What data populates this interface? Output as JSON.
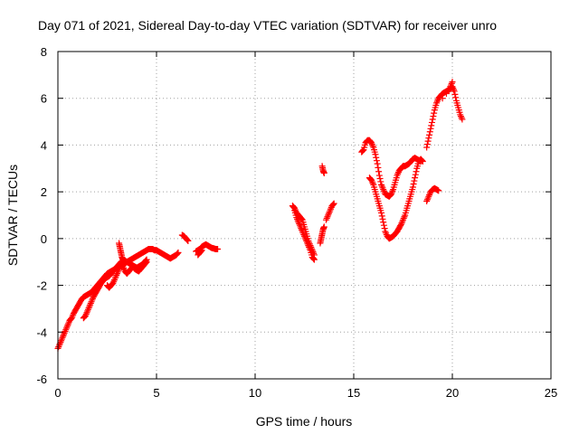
{
  "chart_data": {
    "type": "scatter",
    "title": "Day 071 of 2021, Sidereal Day-to-day VTEC variation (SDTVAR) for receiver unro",
    "xlabel": "GPS time / hours",
    "ylabel": "SDTVAR / TECUs",
    "xlim": [
      0,
      25
    ],
    "ylim": [
      -6,
      8
    ],
    "xticks": [
      "0",
      "5",
      "10",
      "15",
      "20",
      "25"
    ],
    "yticks": [
      "-6",
      "-4",
      "-2",
      "0",
      "2",
      "4",
      "6",
      "8"
    ],
    "grid": true,
    "legend": "none",
    "marker": "plus",
    "color": "#ff0000",
    "series": [
      {
        "x": [
          0.0,
          0.1,
          0.2,
          0.3,
          0.4,
          0.5,
          0.6,
          0.7,
          0.8,
          0.9,
          1.0,
          1.1,
          1.2,
          1.3,
          1.4,
          1.5,
          1.6,
          1.7,
          1.8,
          1.9,
          2.0,
          2.1,
          2.2,
          2.3,
          2.4,
          2.5,
          2.6,
          2.7,
          2.8,
          2.9,
          3.0,
          3.1,
          3.2,
          3.3,
          3.4,
          3.5,
          3.6,
          3.7,
          3.8,
          3.9,
          4.0,
          4.1,
          4.2,
          4.3,
          4.4,
          4.5,
          4.6,
          4.7,
          4.8,
          4.9,
          5.0,
          5.1,
          5.2,
          5.3,
          5.4,
          5.5,
          5.6,
          5.7,
          5.8,
          5.9,
          6.0,
          6.1
        ],
        "y": [
          -4.7,
          -4.5,
          -4.3,
          -4.1,
          -3.9,
          -3.7,
          -3.5,
          -3.4,
          -3.2,
          -3.05,
          -2.9,
          -2.75,
          -2.6,
          -2.5,
          -2.45,
          -2.4,
          -2.35,
          -2.3,
          -2.2,
          -2.1,
          -2.0,
          -1.9,
          -1.8,
          -1.7,
          -1.6,
          -1.5,
          -1.45,
          -1.4,
          -1.35,
          -1.3,
          -1.25,
          -1.2,
          -1.15,
          -1.1,
          -1.05,
          -1.0,
          -0.95,
          -0.9,
          -0.85,
          -0.8,
          -0.75,
          -0.7,
          -0.65,
          -0.6,
          -0.55,
          -0.5,
          -0.45,
          -0.45,
          -0.45,
          -0.5,
          -0.5,
          -0.55,
          -0.6,
          -0.65,
          -0.7,
          -0.75,
          -0.8,
          -0.85,
          -0.8,
          -0.75,
          -0.7,
          -0.6
        ]
      },
      {
        "x": [
          1.3,
          1.4,
          1.5,
          1.6,
          1.7,
          1.8,
          1.9,
          2.0,
          2.1,
          2.2,
          2.3,
          2.4,
          2.5,
          2.6,
          2.7,
          2.8,
          2.9,
          3.0,
          3.1,
          3.2,
          3.3,
          3.4,
          3.5,
          3.6,
          3.7,
          3.8,
          3.9,
          4.0,
          4.1,
          4.2,
          4.3,
          4.4,
          4.5
        ],
        "y": [
          -3.4,
          -3.3,
          -3.1,
          -2.9,
          -2.7,
          -2.5,
          -2.35,
          -2.2,
          -2.05,
          -1.9,
          -1.8,
          -1.7,
          -1.65,
          -1.6,
          -1.5,
          -1.4,
          -1.3,
          -1.2,
          -1.1,
          -1.0,
          -0.95,
          -0.95,
          -1.0,
          -1.05,
          -1.1,
          -1.15,
          -1.2,
          -1.25,
          -1.2,
          -1.15,
          -1.1,
          -1.0,
          -0.9
        ]
      },
      {
        "x": [
          2.5,
          2.6,
          2.7,
          2.8,
          2.9,
          3.0,
          3.1,
          3.2,
          3.3,
          3.4,
          3.5,
          3.6,
          3.7,
          3.8,
          3.9,
          4.0,
          4.1,
          4.2,
          4.3,
          4.4,
          4.5
        ],
        "y": [
          -2.0,
          -2.1,
          -2.0,
          -1.9,
          -1.7,
          -1.5,
          -1.3,
          -1.1,
          -1.2,
          -1.4,
          -1.5,
          -1.4,
          -1.3,
          -1.2,
          -1.3,
          -1.35,
          -1.4,
          -1.3,
          -1.2,
          -1.1,
          -1.0
        ]
      },
      {
        "x": [
          3.1,
          3.15,
          3.2,
          3.25,
          3.3
        ],
        "y": [
          -0.2,
          -0.4,
          -0.6,
          -0.8,
          -0.9
        ]
      },
      {
        "x": [
          6.3,
          6.4,
          6.5,
          6.6
        ],
        "y": [
          0.15,
          0.1,
          0.0,
          -0.1
        ]
      },
      {
        "x": [
          7.0,
          7.1,
          7.2,
          7.3,
          7.4,
          7.5,
          7.6,
          7.7,
          7.8,
          7.9,
          8.0,
          8.1,
          7.1,
          7.2,
          7.3
        ],
        "y": [
          -0.55,
          -0.5,
          -0.45,
          -0.35,
          -0.3,
          -0.25,
          -0.3,
          -0.35,
          -0.4,
          -0.42,
          -0.45,
          -0.45,
          -0.7,
          -0.6,
          -0.5
        ]
      },
      {
        "x": [
          11.9,
          12.0,
          12.1,
          12.2,
          12.3,
          12.4,
          12.5,
          12.6,
          12.7,
          12.8,
          12.9,
          13.0,
          12.0,
          12.1,
          12.2,
          12.3,
          12.4,
          12.5,
          12.6,
          12.7,
          12.8,
          12.9,
          13.0
        ],
        "y": [
          1.4,
          1.3,
          1.1,
          1.0,
          0.9,
          0.8,
          0.5,
          0.2,
          -0.1,
          -0.3,
          -0.5,
          -0.7,
          1.2,
          0.9,
          0.7,
          0.5,
          0.3,
          0.1,
          -0.1,
          -0.3,
          -0.5,
          -0.8,
          -0.9
        ]
      },
      {
        "x": [
          13.3,
          13.35,
          13.4,
          13.45,
          13.5,
          13.4,
          13.45,
          13.5,
          13.6,
          13.7,
          13.8,
          13.9,
          14.0
        ],
        "y": [
          -0.2,
          0.0,
          0.2,
          0.4,
          0.5,
          3.1,
          2.9,
          2.8,
          0.8,
          1.0,
          1.2,
          1.4,
          1.5
        ]
      },
      {
        "x": [
          15.4,
          15.5,
          15.6,
          15.7,
          15.8,
          15.9,
          16.0,
          16.1,
          16.2,
          16.3,
          16.4,
          16.5,
          16.6,
          16.7,
          16.8,
          16.9,
          17.0,
          17.1,
          17.2,
          17.3,
          17.4,
          17.5,
          17.6,
          17.7,
          17.8,
          17.9,
          18.0,
          18.1,
          18.2,
          18.3,
          18.4
        ],
        "y": [
          3.7,
          3.8,
          4.1,
          4.2,
          4.2,
          4.1,
          3.9,
          3.6,
          3.2,
          2.7,
          2.3,
          2.1,
          1.9,
          1.85,
          1.8,
          1.9,
          2.1,
          2.4,
          2.7,
          2.9,
          3.0,
          3.1,
          3.1,
          3.15,
          3.2,
          3.3,
          3.4,
          3.45,
          3.4,
          3.35,
          3.3
        ]
      },
      {
        "x": [
          15.8,
          15.9,
          16.0,
          16.1,
          16.2,
          16.3,
          16.4,
          16.5,
          16.6,
          16.7,
          16.8,
          16.9,
          17.0,
          17.1,
          17.2,
          17.3,
          17.4,
          17.5,
          17.6,
          17.7,
          17.8,
          17.9,
          18.0,
          18.1,
          18.2,
          18.3,
          18.4,
          18.5
        ],
        "y": [
          2.6,
          2.5,
          2.3,
          2.0,
          1.7,
          1.4,
          1.1,
          0.7,
          0.3,
          0.1,
          0.0,
          0.05,
          0.1,
          0.2,
          0.3,
          0.45,
          0.6,
          0.8,
          1.0,
          1.3,
          1.6,
          1.9,
          2.2,
          2.6,
          3.0,
          3.3,
          3.4,
          3.3
        ]
      },
      {
        "x": [
          18.7,
          18.8,
          18.9,
          19.0,
          19.1,
          19.2,
          19.3,
          19.4,
          19.5,
          19.6,
          19.7,
          19.8,
          19.9,
          20.0,
          20.1,
          20.2,
          20.3,
          20.4,
          20.5
        ],
        "y": [
          3.9,
          4.3,
          4.7,
          5.1,
          5.5,
          5.8,
          6.0,
          6.1,
          6.2,
          6.25,
          6.3,
          6.35,
          6.4,
          6.5,
          6.3,
          5.9,
          5.6,
          5.3,
          5.1
        ]
      },
      {
        "x": [
          18.7,
          18.8,
          18.9,
          19.0,
          19.1,
          19.2,
          19.3,
          19.5,
          19.7,
          19.9,
          20.0
        ],
        "y": [
          1.6,
          1.8,
          2.0,
          2.1,
          2.15,
          2.1,
          2.05,
          6.0,
          6.2,
          6.5,
          6.7
        ]
      }
    ]
  }
}
